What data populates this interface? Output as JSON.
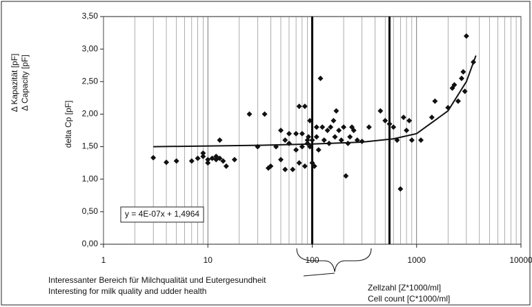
{
  "chart_data": {
    "type": "scatter",
    "y_labels": [
      "Δ Kapazität  [pF]",
      "Δ Capacity [pF]"
    ],
    "y_axis_label": "delta Cp [pF]",
    "x_axis_label": [
      "Zellzahl [Z*1000/ml]",
      "Cell count [C*1000/ml]"
    ],
    "annotation": [
      "Interessanter Bereich für Milchqualität und Eutergesundheit",
      "Interesting for milk quality and udder health"
    ],
    "equation": "y = 4E-07x + 1,4964",
    "log_x": true,
    "grid": true,
    "color": "#111111",
    "xlim": [
      1,
      10000
    ],
    "xticks": [
      1,
      10,
      100,
      1000,
      10000
    ],
    "ylim": [
      0,
      3.5
    ],
    "yticks": [
      {
        "value": 0,
        "label": "0,00"
      },
      {
        "value": 0.5,
        "label": "0,50"
      },
      {
        "value": 1,
        "label": "1,00"
      },
      {
        "value": 1.5,
        "label": "1,50"
      },
      {
        "value": 2,
        "label": "2,00"
      },
      {
        "value": 2.5,
        "label": "2,50"
      },
      {
        "value": 3,
        "label": "3,00"
      },
      {
        "value": 3.5,
        "label": "3,50"
      }
    ],
    "markers": [
      100,
      550
    ],
    "x": [
      3,
      4,
      5,
      7,
      8,
      9,
      9,
      10,
      10,
      11,
      12,
      12,
      13,
      13,
      14,
      15,
      18,
      25,
      30,
      35,
      38,
      40,
      45,
      50,
      50,
      55,
      55,
      60,
      60,
      65,
      70,
      70,
      75,
      75,
      80,
      80,
      85,
      85,
      90,
      90,
      92,
      95,
      95,
      100,
      100,
      105,
      110,
      110,
      115,
      120,
      125,
      130,
      140,
      145,
      150,
      160,
      165,
      170,
      180,
      190,
      200,
      210,
      220,
      230,
      240,
      250,
      270,
      300,
      350,
      450,
      500,
      550,
      600,
      650,
      700,
      750,
      800,
      850,
      900,
      1100,
      1400,
      1500,
      2000,
      2200,
      2300,
      2500,
      2700,
      2800,
      2900,
      3000,
      3500
    ],
    "values": [
      1.33,
      1.26,
      1.28,
      1.28,
      1.32,
      1.35,
      1.4,
      1.25,
      1.3,
      1.32,
      1.35,
      1.3,
      1.6,
      1.32,
      1.28,
      1.2,
      1.3,
      2.0,
      1.5,
      2.0,
      1.17,
      1.2,
      1.5,
      1.75,
      1.3,
      1.15,
      1.6,
      1.7,
      1.55,
      1.15,
      1.7,
      1.45,
      1.25,
      2.12,
      1.7,
      1.5,
      1.2,
      2.12,
      1.6,
      1.55,
      1.65,
      1.9,
      1.5,
      1.25,
      1.6,
      1.2,
      1.8,
      1.65,
      1.45,
      2.55,
      1.8,
      1.6,
      1.75,
      1.55,
      1.8,
      1.9,
      1.65,
      2.05,
      1.75,
      1.6,
      1.8,
      1.05,
      1.55,
      1.65,
      1.8,
      1.75,
      1.6,
      1.58,
      1.8,
      2.05,
      1.9,
      1.85,
      1.8,
      1.6,
      0.85,
      1.95,
      1.75,
      1.9,
      1.6,
      1.6,
      1.95,
      2.2,
      2.1,
      2.4,
      2.45,
      2.2,
      2.55,
      2.65,
      2.35,
      3.2,
      2.8
    ],
    "trend": {
      "x": [
        3,
        10,
        30,
        100,
        300,
        600,
        1000,
        2000,
        3000,
        3700
      ],
      "values": [
        1.5,
        1.51,
        1.52,
        1.54,
        1.57,
        1.62,
        1.7,
        2.05,
        2.5,
        2.9
      ]
    }
  }
}
